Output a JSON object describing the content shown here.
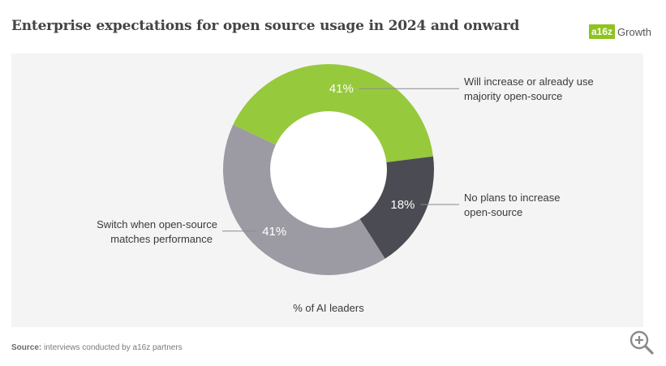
{
  "header": {
    "title": "Enterprise expectations for open source usage in 2024 and onward",
    "logo_mark": "a16z",
    "logo_text": "Growth"
  },
  "footer": {
    "source_label": "Source:",
    "source_text": "interviews conducted by a16z partners"
  },
  "icons": {
    "zoom": "zoom-in-icon"
  },
  "colors": {
    "green": "#97c93d",
    "dark": "#4a4b53",
    "gray": "#9c9ba4",
    "panel": "#f4f4f4"
  },
  "chart_data": {
    "type": "pie",
    "donut": true,
    "xlabel": "% of AI leaders",
    "slices": [
      {
        "label": "Will increase or already use majority open-source",
        "label_lines": [
          "Will increase or already use",
          "majority open-source"
        ],
        "value": 41,
        "display": "41%",
        "color": "#97c93d",
        "label_side": "right"
      },
      {
        "label": "No plans to increase open-source",
        "label_lines": [
          "No plans to increase",
          "open-source"
        ],
        "value": 18,
        "display": "18%",
        "color": "#4a4b53",
        "label_side": "right"
      },
      {
        "label": "Switch when open-source matches performance",
        "label_lines": [
          "Switch when open-source",
          "matches performance"
        ],
        "value": 41,
        "display": "41%",
        "color": "#9c9ba4",
        "label_side": "left"
      }
    ]
  }
}
